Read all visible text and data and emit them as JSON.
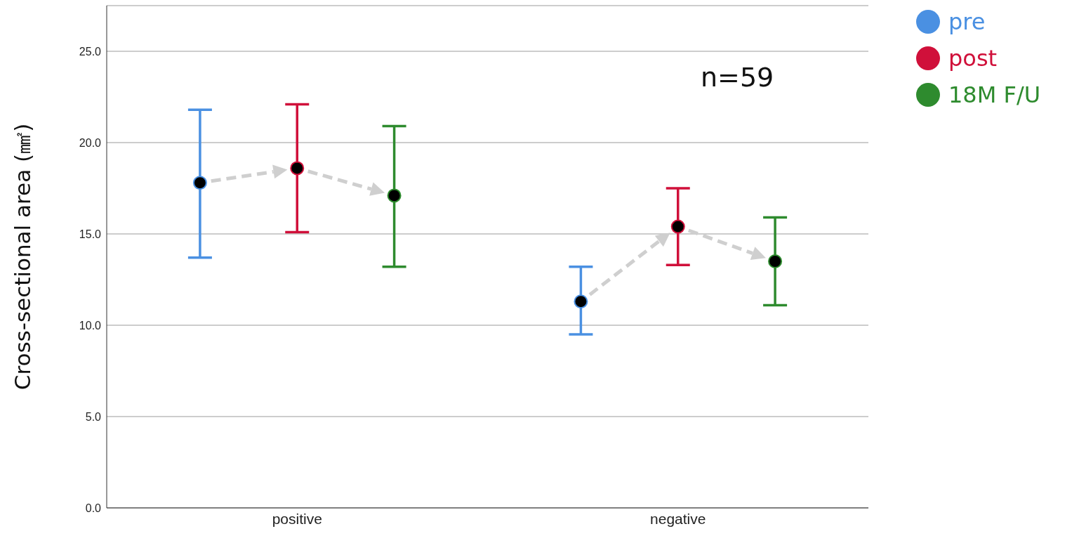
{
  "chart_data": {
    "type": "scatter",
    "ylabel": "Cross-sectional area (㎟)",
    "categories": [
      "positive",
      "negative"
    ],
    "series": [
      {
        "name": "pre",
        "color": "#4a90e2",
        "values": [
          17.8,
          11.3
        ],
        "errors": [
          [
            13.7,
            21.8
          ],
          [
            9.5,
            13.2
          ]
        ]
      },
      {
        "name": "post",
        "color": "#d0103a",
        "values": [
          18.6,
          15.4
        ],
        "errors": [
          [
            15.1,
            22.1
          ],
          [
            13.3,
            17.5
          ]
        ]
      },
      {
        "name": "18M F/U",
        "color": "#2e8b2e",
        "values": [
          17.1,
          13.5
        ],
        "errors": [
          [
            13.2,
            20.9
          ],
          [
            11.1,
            15.9
          ]
        ]
      }
    ],
    "ylim": [
      0,
      27.5
    ],
    "yticks": [
      {
        "value": 0,
        "label": "0.0"
      },
      {
        "value": 5,
        "label": "5.0"
      },
      {
        "value": 10,
        "label": "10.0"
      },
      {
        "value": 15,
        "label": "15.0"
      },
      {
        "value": 20,
        "label": "20.0"
      },
      {
        "value": 25,
        "label": "25.0"
      }
    ],
    "annotations": [
      "n=59"
    ],
    "grid": "y",
    "legend": "top right",
    "marker": "circle"
  }
}
